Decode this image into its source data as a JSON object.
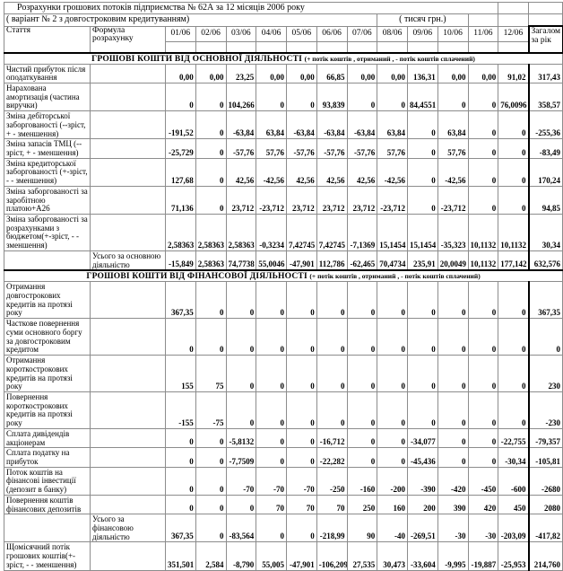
{
  "title": "Розрахунки грошових потоків підприємства № 62А за 12 місяців 2006 року",
  "subtitle": "( варіант  № 2 з довгостроковим кредитуванням)",
  "units": "( тисяч грн.)",
  "columns": {
    "article": "Стаття",
    "formula": "Формула розрахунку",
    "months": [
      "01/06",
      "02/06",
      "03/06",
      "04/06",
      "05/06",
      "06/06",
      "07/06",
      "08/06",
      "09/06",
      "10/06",
      "11/06",
      "12/06"
    ],
    "total": "Загалом за рік"
  },
  "sections": [
    {
      "header": "ГРОШОВІ КОШТИ ВІД ОСНОВНОЇ ДІЯЛЬНОСТІ",
      "header_note": "(+ потік коштів , отриманий , - потік коштів сплачений)",
      "rows": [
        {
          "label": "Чистий прибуток після оподаткування",
          "formula": "",
          "values": [
            "0,00",
            "0,00",
            "23,25",
            "0,00",
            "0,00",
            "66,85",
            "0,00",
            "0,00",
            "136,31",
            "0,00",
            "0,00",
            "91,02",
            "317,43"
          ]
        },
        {
          "label": "Нарахована амортизація (частина виручки)",
          "formula": "",
          "values": [
            "0",
            "0",
            "104,266",
            "0",
            "0",
            "93,839",
            "0",
            "0",
            "84,4551",
            "0",
            "0",
            "76,0096",
            "358,57"
          ]
        },
        {
          "label": "Зміна дебіторської заборгованості (--зріст, + - зменшення)",
          "formula": "",
          "values": [
            "-191,52",
            "0",
            "-63,84",
            "63,84",
            "-63,84",
            "-63,84",
            "-63,84",
            "63,84",
            "0",
            "63,84",
            "0",
            "0",
            "-255,36"
          ]
        },
        {
          "label": "Зміна запасів ТМЦ (--зріст, + - зменшення)",
          "formula": "",
          "values": [
            "-25,729",
            "0",
            "-57,76",
            "57,76",
            "-57,76",
            "-57,76",
            "-57,76",
            "57,76",
            "0",
            "57,76",
            "0",
            "0",
            "-83,49"
          ]
        },
        {
          "label": "Зміна кредиторської заборгованості (+-зріст, - - зменшення)",
          "formula": "",
          "values": [
            "127,68",
            "0",
            "42,56",
            "-42,56",
            "42,56",
            "42,56",
            "42,56",
            "-42,56",
            "0",
            "-42,56",
            "0",
            "0",
            "170,24"
          ]
        },
        {
          "label": "Зміна заборгованості за заробітною платою+А26",
          "formula": "",
          "values": [
            "71,136",
            "0",
            "23,712",
            "-23,712",
            "23,712",
            "23,712",
            "23,712",
            "-23,712",
            "0",
            "-23,712",
            "0",
            "0",
            "94,85"
          ]
        },
        {
          "label": "Зміна заборгованості за розрахунками з бюджетом(+-зріст, - - зменшення)",
          "formula": "",
          "values": [
            "2,58363",
            "2,58363",
            "2,58363",
            "-0,3234",
            "7,42745",
            "7,42745",
            "-7,1369",
            "15,1454",
            "15,1454",
            "-35,323",
            "10,1132",
            "10,1132",
            "30,34"
          ]
        },
        {
          "label": "",
          "formula": "Усього за основною діяльністю",
          "values": [
            "-15,849",
            "2,58363",
            "74,7738",
            "55,0046",
            "-47,901",
            "112,786",
            "-62,465",
            "70,4734",
            "235,91",
            "20,0049",
            "10,1132",
            "177,142",
            "632,576"
          ]
        }
      ]
    },
    {
      "header": "ГРОШОВІ КОШТИ ВІД ФІНАНСОВОЇ ДІЯЛЬНОСТІ",
      "header_note": "(+ потік коштів , отриманий , - потік коштів сплачений)",
      "rows": [
        {
          "label": "Отримання довгострокових кредитів на протязі року",
          "formula": "",
          "values": [
            "367,35",
            "0",
            "0",
            "0",
            "0",
            "0",
            "0",
            "0",
            "0",
            "0",
            "0",
            "0",
            "367,35"
          ]
        },
        {
          "label": "Часткове повернення суми основного боргу за довгостроковим кредитом",
          "formula": "",
          "values": [
            "0",
            "0",
            "0",
            "0",
            "0",
            "0",
            "0",
            "0",
            "0",
            "0",
            "0",
            "0",
            "0"
          ]
        },
        {
          "label": "Отримання короткострокових кредитів на протязі року",
          "formula": "",
          "values": [
            "155",
            "75",
            "0",
            "0",
            "0",
            "0",
            "0",
            "0",
            "0",
            "0",
            "0",
            "0",
            "230"
          ]
        },
        {
          "label": "Повернення короткострокових кредитів на протязі року",
          "formula": "",
          "values": [
            "-155",
            "-75",
            "0",
            "0",
            "0",
            "0",
            "0",
            "0",
            "0",
            "0",
            "0",
            "0",
            "-230"
          ]
        },
        {
          "label": "Сплата дивідендів акціонерам",
          "formula": "",
          "values": [
            "0",
            "0",
            "-5,8132",
            "0",
            "0",
            "-16,712",
            "0",
            "0",
            "-34,077",
            "0",
            "0",
            "-22,755",
            "-79,357"
          ]
        },
        {
          "label": "Сплата податку на прибуток",
          "formula": "",
          "values": [
            "0",
            "0",
            "-7,7509",
            "0",
            "0",
            "-22,282",
            "0",
            "0",
            "-45,436",
            "0",
            "0",
            "-30,34",
            "-105,81"
          ]
        },
        {
          "label": "Поток коштів на фінансові інвестиції (депозит в банку)",
          "formula": "",
          "values": [
            "0",
            "0",
            "-70",
            "-70",
            "-70",
            "-250",
            "-160",
            "-200",
            "-390",
            "-420",
            "-450",
            "-600",
            "-2680"
          ]
        },
        {
          "label": "Повернення коштів фінансових депозитів",
          "formula": "",
          "values": [
            "0",
            "0",
            "0",
            "70",
            "70",
            "70",
            "250",
            "160",
            "200",
            "390",
            "420",
            "450",
            "2080"
          ]
        },
        {
          "label": "",
          "formula": "Усього за фінансовою діяльністю",
          "values": [
            "367,35",
            "0",
            "-83,564",
            "0",
            "0",
            "-218,99",
            "90",
            "-40",
            "-269,51",
            "-30",
            "-30",
            "-203,09",
            "-417,82"
          ]
        },
        {
          "label": "Щомісячний потік грошових коштів(+-зріст, - - зменшення)",
          "formula": "",
          "values": [
            "351,501",
            "2,584",
            "-8,790",
            "55,005",
            "-47,901",
            "-106,209",
            "27,535",
            "30,473",
            "-33,604",
            "-9,995",
            "-19,887",
            "-25,953",
            "214,760"
          ]
        }
      ]
    }
  ]
}
